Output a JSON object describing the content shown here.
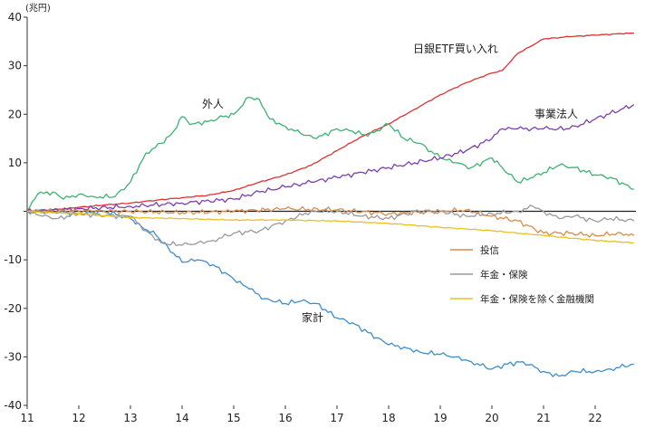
{
  "chart_data": {
    "type": "line",
    "unit_label": "(兆円)",
    "xlabel": "",
    "ylabel": "",
    "ylim": [
      -40,
      40
    ],
    "xlim": [
      11,
      22.75
    ],
    "grid": false,
    "y_ticks": [
      40,
      30,
      20,
      10,
      0,
      -10,
      -20,
      -30,
      -40
    ],
    "y_tick_labels": [
      "40",
      "30",
      "20",
      "10",
      "",
      "-10",
      "-20",
      "-30",
      "-40"
    ],
    "x_ticks": [
      11,
      12,
      13,
      14,
      15,
      16,
      17,
      18,
      19,
      20,
      21,
      22
    ],
    "x_tick_labels": [
      "11",
      "12",
      "13",
      "14",
      "15",
      "16",
      "17",
      "18",
      "19",
      "20",
      "21",
      "22"
    ],
    "annotations": {
      "etf": "日銀ETF買い入れ",
      "foreign": "外人",
      "corp": "事業法人",
      "household": "家計"
    },
    "legend": [
      {
        "series": "trust",
        "label": "投信"
      },
      {
        "series": "pension",
        "label": "年金・保険"
      },
      {
        "series": "pension_ex",
        "label": "年金・保険を除く金融機関"
      }
    ],
    "series": [
      {
        "id": "etf",
        "name": "日銀ETF買い入れ",
        "color": "#e03030",
        "points": [
          [
            11,
            0
          ],
          [
            11.5,
            0.3
          ],
          [
            12,
            0.8
          ],
          [
            12.5,
            1.3
          ],
          [
            13,
            1.7
          ],
          [
            13.5,
            2.3
          ],
          [
            14,
            2.8
          ],
          [
            14.5,
            3.3
          ],
          [
            15,
            4.3
          ],
          [
            15.5,
            6
          ],
          [
            16,
            7.5
          ],
          [
            16.5,
            9.5
          ],
          [
            17,
            12.5
          ],
          [
            17.5,
            15.5
          ],
          [
            18,
            18
          ],
          [
            18.5,
            21
          ],
          [
            19,
            24
          ],
          [
            19.5,
            26.5
          ],
          [
            20,
            28.5
          ],
          [
            20.2,
            29
          ],
          [
            20.5,
            32.5
          ],
          [
            21,
            35.5
          ],
          [
            21.5,
            36
          ],
          [
            22,
            36.3
          ],
          [
            22.5,
            36.6
          ],
          [
            22.75,
            36.7
          ]
        ]
      },
      {
        "id": "foreign",
        "name": "外人",
        "color": "#3cb371",
        "points": [
          [
            11,
            0
          ],
          [
            11.2,
            3.5
          ],
          [
            11.5,
            4
          ],
          [
            11.7,
            2.5
          ],
          [
            12,
            3.5
          ],
          [
            12.3,
            3
          ],
          [
            12.7,
            3
          ],
          [
            13,
            6
          ],
          [
            13.3,
            12
          ],
          [
            13.6,
            14
          ],
          [
            13.8,
            16
          ],
          [
            14,
            19.5
          ],
          [
            14.2,
            18
          ],
          [
            14.5,
            18.5
          ],
          [
            14.8,
            19.5
          ],
          [
            15,
            20
          ],
          [
            15.3,
            23.5
          ],
          [
            15.5,
            23
          ],
          [
            15.7,
            19
          ],
          [
            16,
            17.5
          ],
          [
            16.3,
            16
          ],
          [
            16.6,
            15
          ],
          [
            17,
            17
          ],
          [
            17.3,
            16.5
          ],
          [
            17.6,
            15.5
          ],
          [
            18,
            18
          ],
          [
            18.3,
            15
          ],
          [
            18.6,
            14
          ],
          [
            19,
            11
          ],
          [
            19.3,
            10
          ],
          [
            19.6,
            9
          ],
          [
            20,
            11
          ],
          [
            20.2,
            9
          ],
          [
            20.5,
            6
          ],
          [
            20.8,
            7
          ],
          [
            21,
            8
          ],
          [
            21.3,
            9.5
          ],
          [
            21.6,
            9
          ],
          [
            22,
            7.5
          ],
          [
            22.3,
            7
          ],
          [
            22.75,
            4.5
          ]
        ]
      },
      {
        "id": "corp",
        "name": "事業法人",
        "color": "#7b3fb0",
        "points": [
          [
            11,
            0
          ],
          [
            12,
            0.5
          ],
          [
            13,
            1
          ],
          [
            14,
            1.7
          ],
          [
            15,
            2.5
          ],
          [
            15.5,
            4
          ],
          [
            16,
            5
          ],
          [
            16.5,
            6
          ],
          [
            17,
            7
          ],
          [
            17.5,
            8
          ],
          [
            18,
            9
          ],
          [
            18.5,
            10
          ],
          [
            19,
            11
          ],
          [
            19.5,
            12.5
          ],
          [
            20,
            15
          ],
          [
            20.2,
            17
          ],
          [
            20.5,
            17
          ],
          [
            21,
            17
          ],
          [
            21.5,
            17
          ],
          [
            22,
            19
          ],
          [
            22.5,
            21
          ],
          [
            22.75,
            22
          ]
        ]
      },
      {
        "id": "household",
        "name": "家計",
        "color": "#3b8ed0",
        "points": [
          [
            11,
            0
          ],
          [
            11.5,
            0
          ],
          [
            12,
            -0.5
          ],
          [
            12.5,
            0
          ],
          [
            13,
            -1.5
          ],
          [
            13.2,
            -3
          ],
          [
            13.5,
            -5
          ],
          [
            14,
            -10.5
          ],
          [
            14.3,
            -10
          ],
          [
            14.6,
            -11
          ],
          [
            15,
            -14
          ],
          [
            15.3,
            -16
          ],
          [
            15.6,
            -18
          ],
          [
            16,
            -19
          ],
          [
            16.3,
            -18.5
          ],
          [
            16.6,
            -19
          ],
          [
            17,
            -22
          ],
          [
            17.3,
            -23
          ],
          [
            17.6,
            -25
          ],
          [
            18,
            -27.5
          ],
          [
            18.3,
            -28
          ],
          [
            18.6,
            -29
          ],
          [
            19,
            -29.5
          ],
          [
            19.3,
            -30
          ],
          [
            19.6,
            -31
          ],
          [
            20,
            -32.5
          ],
          [
            20.3,
            -31.5
          ],
          [
            20.6,
            -31
          ],
          [
            21,
            -33
          ],
          [
            21.3,
            -34
          ],
          [
            21.6,
            -33
          ],
          [
            22,
            -33
          ],
          [
            22.3,
            -32.5
          ],
          [
            22.75,
            -31.5
          ]
        ]
      },
      {
        "id": "trust",
        "name": "投信",
        "color": "#d98c4a",
        "points": [
          [
            11,
            0
          ],
          [
            12,
            0
          ],
          [
            13,
            0
          ],
          [
            14,
            -0.3
          ],
          [
            15,
            0
          ],
          [
            16,
            0.5
          ],
          [
            17,
            0.3
          ],
          [
            18,
            -0.5
          ],
          [
            19,
            0
          ],
          [
            19.5,
            0.3
          ],
          [
            20,
            -1
          ],
          [
            20.5,
            -2
          ],
          [
            21,
            -4.5
          ],
          [
            21.5,
            -4.5
          ],
          [
            22,
            -5
          ],
          [
            22.5,
            -4.5
          ],
          [
            22.75,
            -5
          ]
        ]
      },
      {
        "id": "pension",
        "name": "年金・保険",
        "color": "#999999",
        "points": [
          [
            11,
            0
          ],
          [
            11.3,
            -1
          ],
          [
            11.6,
            -1.5
          ],
          [
            12,
            -0.5
          ],
          [
            12.5,
            -1
          ],
          [
            13,
            -1
          ],
          [
            13.3,
            -4
          ],
          [
            13.6,
            -6.5
          ],
          [
            14,
            -7
          ],
          [
            14.3,
            -6.5
          ],
          [
            14.6,
            -6
          ],
          [
            15,
            -4.5
          ],
          [
            15.5,
            -4
          ],
          [
            16,
            -2
          ],
          [
            16.5,
            0
          ],
          [
            17,
            0
          ],
          [
            17.5,
            -1
          ],
          [
            18,
            -1.5
          ],
          [
            18.5,
            0
          ],
          [
            19,
            0
          ],
          [
            19.5,
            -1
          ],
          [
            20,
            -0.5
          ],
          [
            20.5,
            0
          ],
          [
            20.8,
            1
          ],
          [
            21,
            0
          ],
          [
            21.3,
            -1.5
          ],
          [
            21.6,
            -1
          ],
          [
            22,
            -2
          ],
          [
            22.3,
            -1.5
          ],
          [
            22.75,
            -2
          ]
        ]
      },
      {
        "id": "pension_ex",
        "name": "年金・保険を除く金融機関",
        "color": "#e8c020",
        "points": [
          [
            11,
            0
          ],
          [
            12,
            -0.5
          ],
          [
            13,
            -1.3
          ],
          [
            14,
            -1.5
          ],
          [
            15,
            -1.8
          ],
          [
            16,
            -1.8
          ],
          [
            17,
            -2
          ],
          [
            18,
            -2.5
          ],
          [
            19,
            -3.3
          ],
          [
            20,
            -4
          ],
          [
            21,
            -5
          ],
          [
            22,
            -6
          ],
          [
            22.75,
            -6.5
          ]
        ]
      }
    ]
  }
}
